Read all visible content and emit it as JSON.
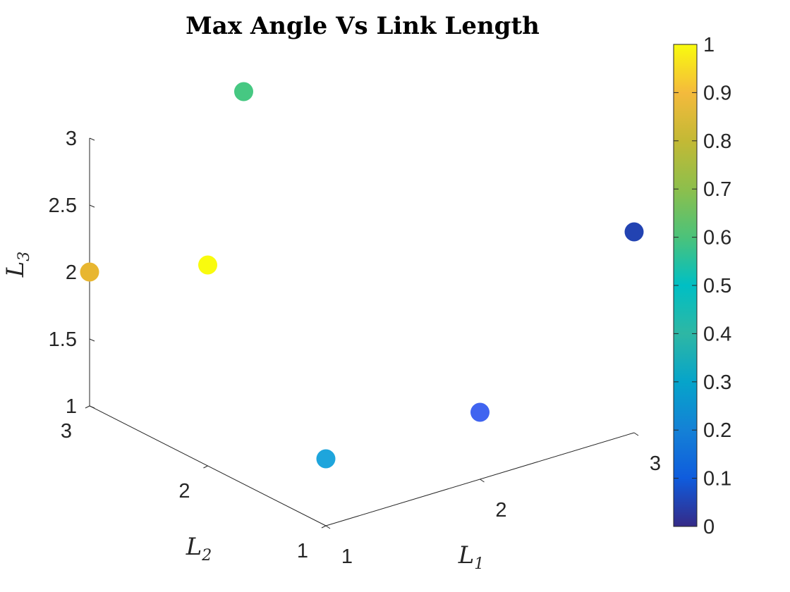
{
  "chart_data": {
    "type": "scatter",
    "title": "Max Angle Vs Link Length",
    "xlabel": {
      "base": "L",
      "sub": "1"
    },
    "ylabel": {
      "base": "L",
      "sub": "2"
    },
    "zlabel": {
      "base": "L",
      "sub": "3"
    },
    "xlim": [
      1,
      3
    ],
    "ylim": [
      1,
      3
    ],
    "zlim": [
      1,
      3
    ],
    "x_ticks": [
      "1",
      "2",
      "3"
    ],
    "y_ticks": [
      "1",
      "2",
      "3"
    ],
    "z_ticks": [
      "1",
      "1.5",
      "2",
      "2.5",
      "3"
    ],
    "color_data_range": [
      0,
      1
    ],
    "colorbar_ticks": [
      "0",
      "0.1",
      "0.2",
      "0.3",
      "0.4",
      "0.5",
      "0.6",
      "0.7",
      "0.8",
      "0.9",
      "1"
    ],
    "points": [
      {
        "x": 1,
        "y": 3,
        "z": 2,
        "c": 0.8
      },
      {
        "x": 1,
        "y": 2,
        "z": 2.5,
        "c": 1.0
      },
      {
        "x": 2,
        "y": 3,
        "z": 3,
        "c": 0.62
      },
      {
        "x": 1,
        "y": 1,
        "z": 1.5,
        "c": 0.38
      },
      {
        "x": 3,
        "y": 1,
        "z": 2.5,
        "c": 0.05
      },
      {
        "x": 2,
        "y": 1,
        "z": 1.5,
        "c": 0.2
      }
    ],
    "grid": false,
    "colormap": "parula",
    "colorbar_position": "right"
  }
}
